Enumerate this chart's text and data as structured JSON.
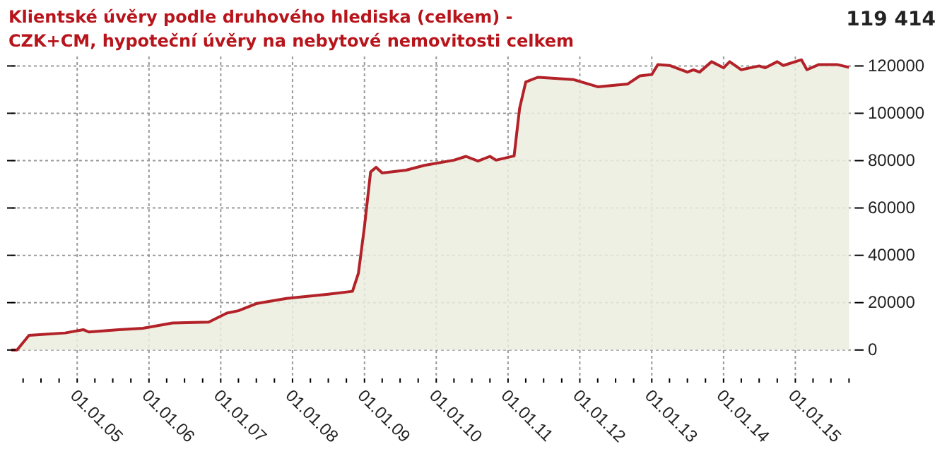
{
  "chart_data": {
    "type": "area",
    "title": "Klientské úvěry podle druhového hlediska (celkem) - CZK+CM, hypoteční úvěry na nebytové nemovitosti celkem",
    "annotations": [
      "119 414"
    ],
    "x": [
      "2004-02",
      "2004-03",
      "2004-05",
      "2004-11",
      "2005-02",
      "2005-03",
      "2005-08",
      "2005-12",
      "2006-05",
      "2006-11",
      "2007-02",
      "2007-04",
      "2007-07",
      "2007-12",
      "2008-07",
      "2008-11",
      "2008-12",
      "2009-01",
      "2009-02",
      "2009-03",
      "2009-04",
      "2009-08",
      "2009-11",
      "2010-04",
      "2010-06",
      "2010-08",
      "2010-10",
      "2010-11",
      "2011-02",
      "2011-03",
      "2011-04",
      "2011-06",
      "2011-12",
      "2012-04",
      "2012-09",
      "2012-11",
      "2013-01",
      "2013-02",
      "2013-04",
      "2013-07",
      "2013-08",
      "2013-09",
      "2013-11",
      "2014-01",
      "2014-02",
      "2014-04",
      "2014-07",
      "2014-08",
      "2014-10",
      "2014-11",
      "2015-02",
      "2015-03",
      "2015-05",
      "2015-08",
      "2015-10"
    ],
    "series": [
      {
        "color": "#b22228",
        "values": [
          0,
          0,
          6200,
          7200,
          8600,
          7600,
          8600,
          9200,
          11400,
          11800,
          15600,
          16600,
          19600,
          21800,
          23600,
          24800,
          32400,
          52200,
          75200,
          77200,
          74800,
          76000,
          78000,
          80200,
          81800,
          79800,
          81800,
          80200,
          82000,
          102200,
          113200,
          115200,
          114200,
          111200,
          112400,
          115800,
          116400,
          120600,
          120200,
          117400,
          118400,
          117400,
          121800,
          119200,
          121800,
          118400,
          120000,
          119200,
          121800,
          120200,
          122600,
          118400,
          120600,
          120600,
          119414
        ]
      }
    ],
    "xlim": [
      "2004-02",
      "2015-11"
    ],
    "xticks": [
      {
        "value": "2004-04",
        "label": null
      },
      {
        "value": "2004-07",
        "label": null
      },
      {
        "value": "2004-10",
        "label": null
      },
      {
        "value": "2005-01",
        "label": "01.01.05"
      },
      {
        "value": "2005-04",
        "label": null
      },
      {
        "value": "2005-07",
        "label": null
      },
      {
        "value": "2005-10",
        "label": null
      },
      {
        "value": "2006-01",
        "label": "01.01.06"
      },
      {
        "value": "2006-04",
        "label": null
      },
      {
        "value": "2006-07",
        "label": null
      },
      {
        "value": "2006-10",
        "label": null
      },
      {
        "value": "2007-01",
        "label": "01.01.07"
      },
      {
        "value": "2007-04",
        "label": null
      },
      {
        "value": "2007-07",
        "label": null
      },
      {
        "value": "2007-10",
        "label": null
      },
      {
        "value": "2008-01",
        "label": "01.01.08"
      },
      {
        "value": "2008-04",
        "label": null
      },
      {
        "value": "2008-07",
        "label": null
      },
      {
        "value": "2008-10",
        "label": null
      },
      {
        "value": "2009-01",
        "label": "01.01.09"
      },
      {
        "value": "2009-04",
        "label": null
      },
      {
        "value": "2009-07",
        "label": null
      },
      {
        "value": "2009-10",
        "label": null
      },
      {
        "value": "2010-01",
        "label": "01.01.10"
      },
      {
        "value": "2010-04",
        "label": null
      },
      {
        "value": "2010-07",
        "label": null
      },
      {
        "value": "2010-10",
        "label": null
      },
      {
        "value": "2011-01",
        "label": "01.01.11"
      },
      {
        "value": "2011-04",
        "label": null
      },
      {
        "value": "2011-07",
        "label": null
      },
      {
        "value": "2011-10",
        "label": null
      },
      {
        "value": "2012-01",
        "label": "01.01.12"
      },
      {
        "value": "2012-04",
        "label": null
      },
      {
        "value": "2012-07",
        "label": null
      },
      {
        "value": "2012-10",
        "label": null
      },
      {
        "value": "2013-01",
        "label": "01.01.13"
      },
      {
        "value": "2013-04",
        "label": null
      },
      {
        "value": "2013-07",
        "label": null
      },
      {
        "value": "2013-10",
        "label": null
      },
      {
        "value": "2014-01",
        "label": "01.01.14"
      },
      {
        "value": "2014-04",
        "label": null
      },
      {
        "value": "2014-07",
        "label": null
      },
      {
        "value": "2014-10",
        "label": null
      },
      {
        "value": "2015-01",
        "label": "01.01.15"
      },
      {
        "value": "2015-04",
        "label": null
      },
      {
        "value": "2015-07",
        "label": null
      },
      {
        "value": "2015-10",
        "label": null
      }
    ],
    "ylim": [
      -12000,
      124000
    ],
    "yticks": [
      0,
      20000,
      40000,
      60000,
      80000,
      100000,
      120000
    ],
    "grid": true
  }
}
